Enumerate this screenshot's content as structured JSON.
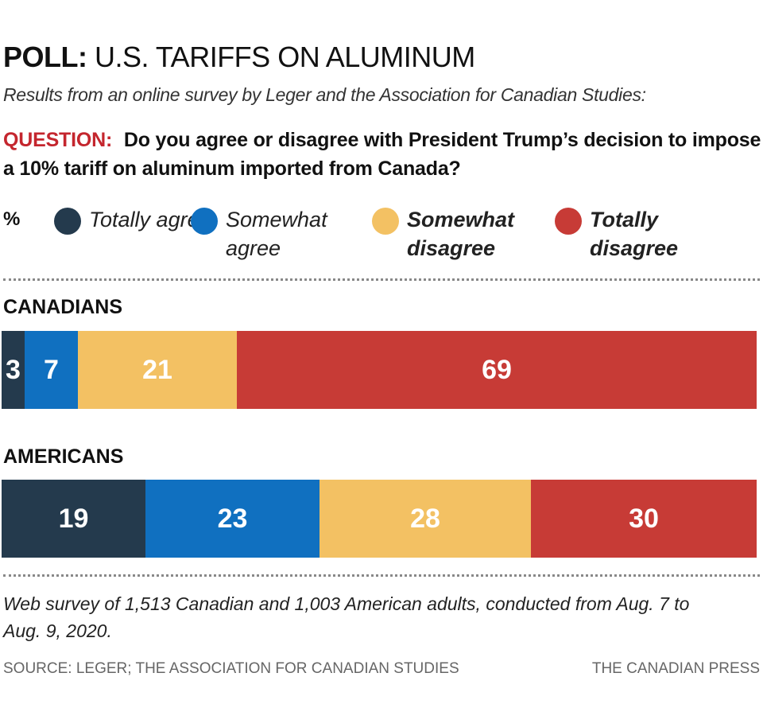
{
  "header": {
    "title_bold": "POLL:",
    "title_rest": "U.S. TARIFFS ON ALUMINUM",
    "subtitle": "Results from an online survey by Leger and the Association for Canadian Studies:",
    "question_label": "QUESTION:",
    "question_text": "Do you agree or disagree with President Trump’s decision to impose a 10% tariff on aluminum imported from Canada?"
  },
  "legend": {
    "unit": "%",
    "items": [
      {
        "label": "Totally agree",
        "color": "#243a4d"
      },
      {
        "label": "Somewhat agree",
        "color": "#1070c0"
      },
      {
        "label": "Somewhat disagree",
        "color": "#f3c163"
      },
      {
        "label": "Totally disagree",
        "color": "#c73b36"
      }
    ]
  },
  "chart_data": {
    "type": "bar",
    "orientation": "horizontal-stacked",
    "unit": "%",
    "categories": [
      "CANADIANS",
      "AMERICANS"
    ],
    "series": [
      {
        "name": "Totally agree",
        "values": [
          3,
          19
        ]
      },
      {
        "name": "Somewhat agree",
        "values": [
          7,
          23
        ]
      },
      {
        "name": "Somewhat disagree",
        "values": [
          21,
          28
        ]
      },
      {
        "name": "Totally disagree",
        "values": [
          69,
          30
        ]
      }
    ],
    "title": "POLL: U.S. TARIFFS ON ALUMINUM",
    "xlabel": "",
    "ylabel": "",
    "xlim": [
      0,
      100
    ]
  },
  "footer": {
    "note": "Web survey of 1,513 Canadian and 1,003 American adults, conducted from Aug. 7 to Aug. 9, 2020.",
    "source": "SOURCE: LEGER; THE ASSOCIATION FOR CANADIAN STUDIES",
    "credit": "THE CANADIAN PRESS"
  }
}
